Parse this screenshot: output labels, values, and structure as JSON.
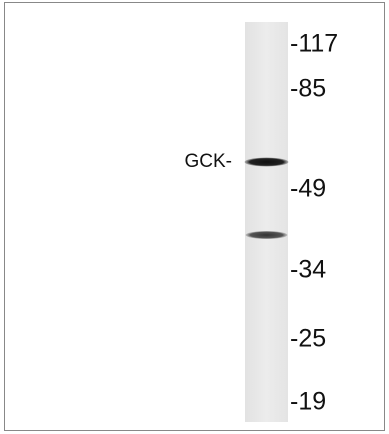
{
  "band_label": "GCK-",
  "markers": [
    "-117",
    "-85",
    "-49",
    "-34",
    "-25",
    "-19"
  ]
}
